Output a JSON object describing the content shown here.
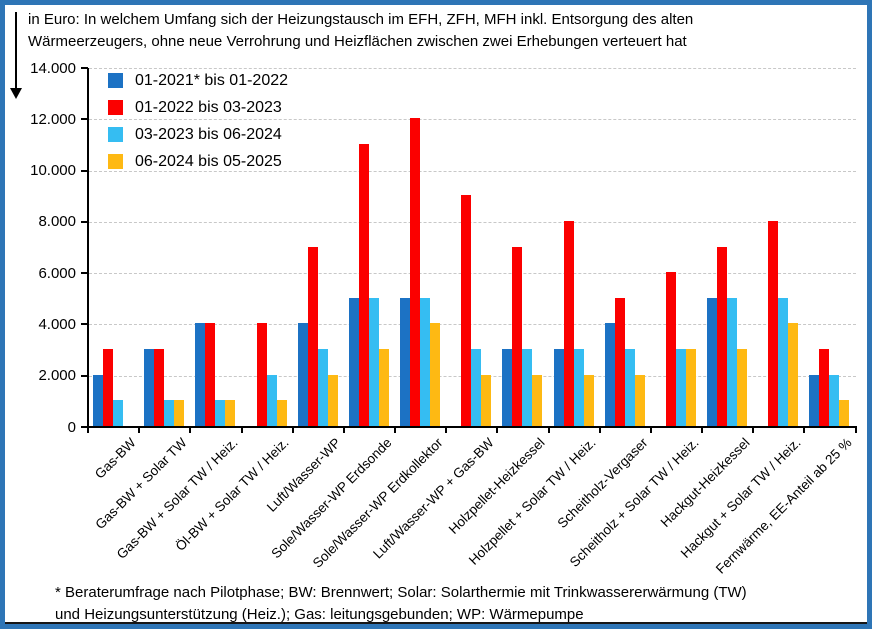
{
  "window": {
    "border_color": "#2E75B6"
  },
  "icons": {
    "down_arrow": "↓"
  },
  "title": {
    "line1": "in Euro: In welchem Umfang sich der Heizungstausch im EFH, ZFH, MFH inkl. Entsorgung des alten",
    "line2": "Wärmeerzeugers, ohne neue Verrohrung und Heizflächen zwischen zwei Erhebungen verteuert hat"
  },
  "legend": {
    "items": [
      {
        "label": "01-2021* bis 01-2022",
        "color": "#1C72C4"
      },
      {
        "label": "01-2022 bis 03-2023",
        "color": "#FB0000"
      },
      {
        "label": "03-2023 bis 06-2024",
        "color": "#35BDF2"
      },
      {
        "label": "06-2024 bis 05-2025",
        "color": "#FEB913"
      }
    ]
  },
  "chart_data": {
    "type": "bar",
    "title": "in Euro: In welchem Umfang sich der Heizungstausch im EFH, ZFH, MFH inkl. Entsorgung des alten Wärmeerzeugers, ohne neue Verrohrung und Heizflächen zwischen zwei Erhebungen verteuert hat",
    "categories": [
      "Gas-BW",
      "Gas-BW + Solar TW",
      "Gas-BW + Solar TW / Heiz.",
      "Öl-BW + Solar TW / Heiz.",
      "Luft/Wasser-WP",
      "Sole/Wasser-WP Erdsonde",
      "Sole/Wasser-WP Erdkollektor",
      "Luft/Wasser-WP + Gas-BW",
      "Holzpellet-Heizkessel",
      "Holzpellet + Solar TW / Heiz.",
      "Scheitholz-Vergaser",
      "Scheitholz + Solar TW / Heiz.",
      "Hackgut-Heizkessel",
      "Hackgut + Solar TW / Heiz.",
      "Fernwärme, EE-Anteil ab 25 %"
    ],
    "series": [
      {
        "name": "01-2021* bis 01-2022",
        "color": "#1C72C4",
        "values": [
          2000,
          3000,
          4000,
          0,
          4000,
          5000,
          5000,
          0,
          3000,
          3000,
          4000,
          0,
          5000,
          0,
          2000
        ]
      },
      {
        "name": "01-2022 bis 03-2023",
        "color": "#FB0000",
        "values": [
          3000,
          3000,
          4000,
          4000,
          7000,
          11000,
          12000,
          9000,
          7000,
          8000,
          5000,
          6000,
          7000,
          8000,
          3000
        ]
      },
      {
        "name": "03-2023 bis 06-2024",
        "color": "#35BDF2",
        "values": [
          1000,
          1000,
          1000,
          2000,
          3000,
          5000,
          5000,
          3000,
          3000,
          3000,
          3000,
          3000,
          5000,
          5000,
          2000
        ]
      },
      {
        "name": "06-2024 bis 05-2025",
        "color": "#FEB913",
        "values": [
          0,
          1000,
          1000,
          1000,
          2000,
          3000,
          4000,
          2000,
          2000,
          2000,
          2000,
          3000,
          3000,
          4000,
          1000
        ]
      }
    ],
    "ylim": [
      0,
      14000
    ],
    "ytick_step": 2000,
    "ytick_labels": [
      "0",
      "2.000",
      "4.000",
      "6.000",
      "8.000",
      "10.000",
      "12.000",
      "14.000"
    ],
    "xlabel": "",
    "ylabel": "in Euro",
    "grid": true,
    "legend_position": "top-left"
  },
  "footnote": {
    "line1": "* Beraterumfrage nach Pilotphase; BW: Brennwert; Solar: Solarthermie mit Trinkwassererwärmung (TW)",
    "line2": "und Heizungsunterstützung (Heiz.); Gas: leitungsgebunden; WP: Wärmepumpe"
  }
}
